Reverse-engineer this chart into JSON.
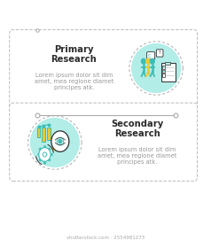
{
  "bg_color": "#ffffff",
  "circle_fill": "#b2ede8",
  "circle_edge": "#aaaaaa",
  "box_edge": "#bbbbbb",
  "line_color": "#aaaaaa",
  "dot_color": "#aaaaaa",
  "teal": "#3dbdb5",
  "yellow": "#e8c932",
  "dark": "#2d2d2d",
  "title1": "Primary\nResearch",
  "title2": "Secondary\nResearch",
  "body": "Lorem ipsum dolor sit dim\namet, mea regione diamet\nprincipes atk.",
  "title_color": "#2b2b2b",
  "body_color": "#999999",
  "title_fs": 7.2,
  "body_fs": 4.8,
  "watermark": "shutterstock.com · 2554981273",
  "wm_color": "#aaaaaa",
  "wm_fs": 4.0
}
